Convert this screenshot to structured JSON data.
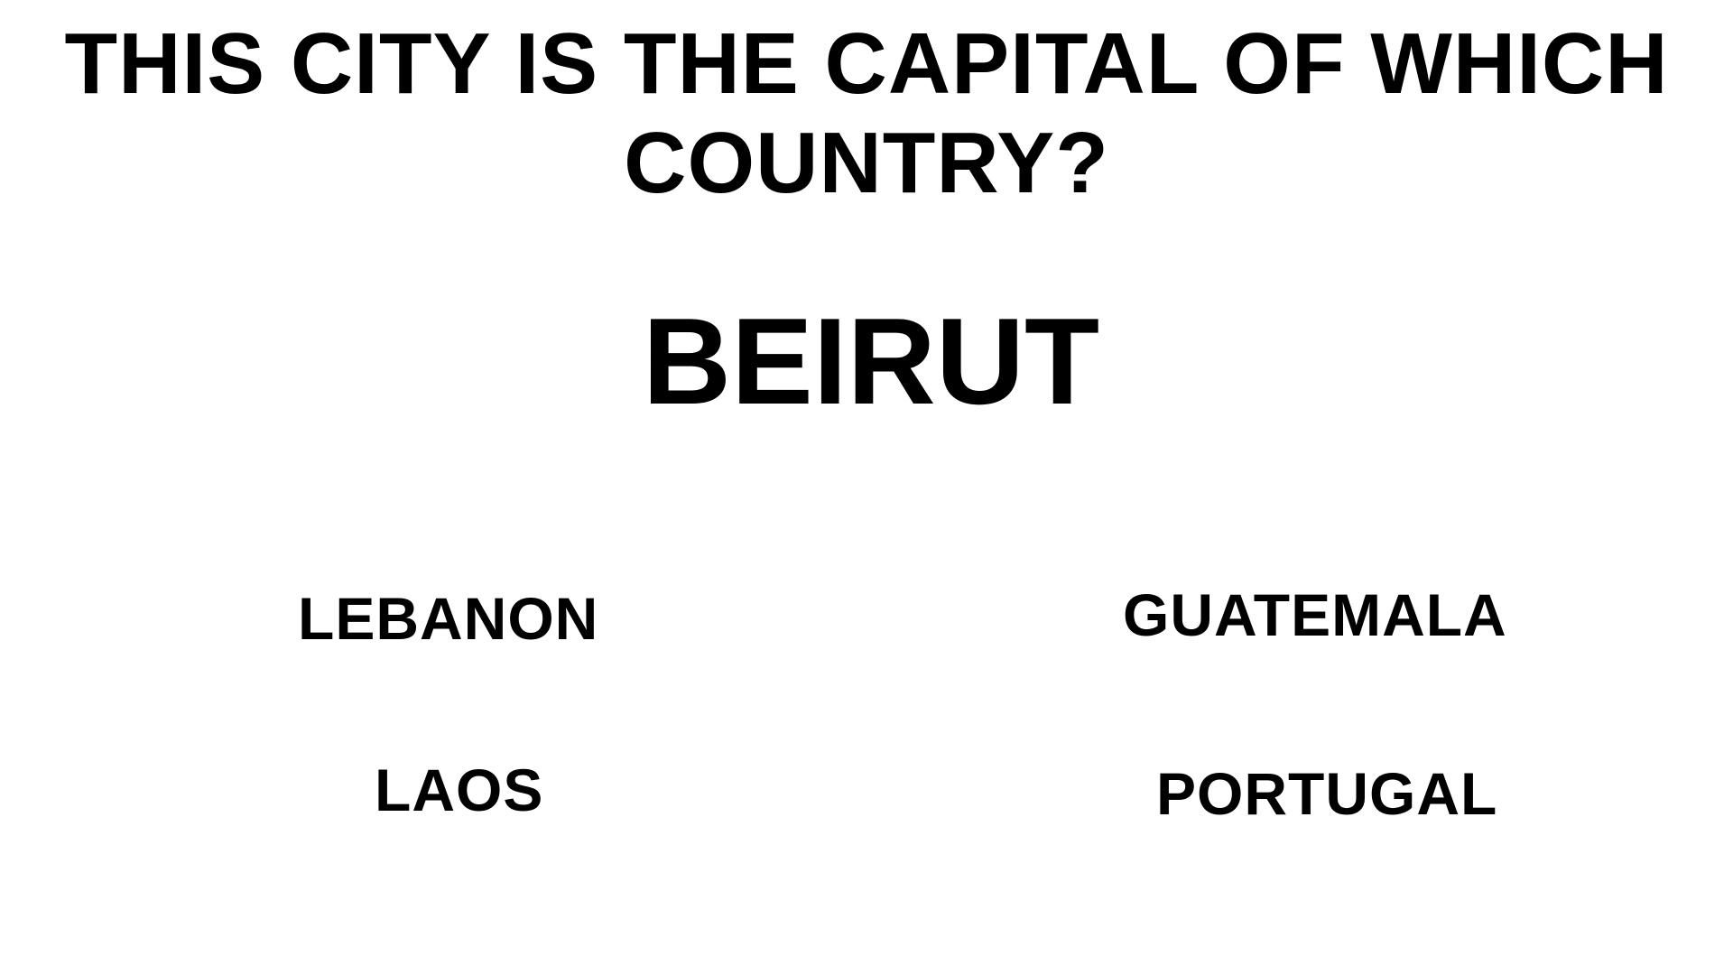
{
  "quiz": {
    "question": "THIS CITY IS THE CAPITAL OF WHICH COUNTRY?",
    "city": "BEIRUT",
    "options": [
      {
        "label": "LEBANON"
      },
      {
        "label": "GUATEMALA"
      },
      {
        "label": "LAOS"
      },
      {
        "label": "PORTUGAL"
      }
    ]
  },
  "colors": {
    "background": "#ffffff",
    "text": "#000000"
  }
}
